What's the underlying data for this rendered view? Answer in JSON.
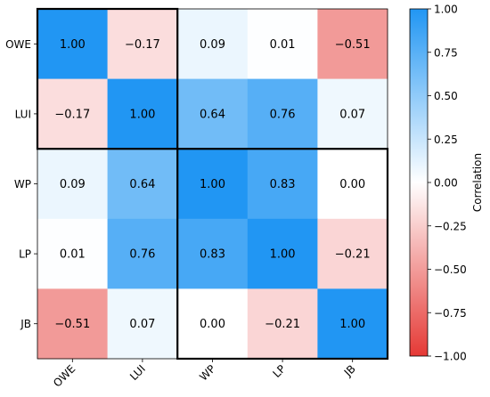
{
  "chart_data": {
    "type": "heatmap",
    "row_labels": [
      "OWE",
      "LUI",
      "WP",
      "LP",
      "JB"
    ],
    "col_labels": [
      "OWE",
      "LUI",
      "WP",
      "LP",
      "JB"
    ],
    "values": [
      [
        1.0,
        -0.17,
        0.09,
        0.01,
        -0.51
      ],
      [
        -0.17,
        1.0,
        0.64,
        0.76,
        0.07
      ],
      [
        0.09,
        0.64,
        1.0,
        0.83,
        0.0
      ],
      [
        0.01,
        0.76,
        0.83,
        1.0,
        -0.21
      ],
      [
        -0.51,
        0.07,
        0.0,
        -0.21,
        1.0
      ]
    ],
    "cell_labels": [
      [
        "1.00",
        "−0.17",
        "0.09",
        "0.01",
        "−0.51"
      ],
      [
        "−0.17",
        "1.00",
        "0.64",
        "0.76",
        "0.07"
      ],
      [
        "0.09",
        "0.64",
        "1.00",
        "0.83",
        "0.00"
      ],
      [
        "0.01",
        "0.76",
        "0.83",
        "1.00",
        "−0.21"
      ],
      [
        "−0.51",
        "0.07",
        "0.00",
        "−0.21",
        "1.00"
      ]
    ],
    "value_range": [
      -1.0,
      1.0
    ],
    "colorbar": {
      "label": "Correlation",
      "ticks": [
        1.0,
        0.75,
        0.5,
        0.25,
        0.0,
        -0.25,
        -0.5,
        -0.75,
        -1.0
      ],
      "tick_labels": [
        "1.00",
        "0.75",
        "0.50",
        "0.25",
        "0.00",
        "−0.25",
        "−0.50",
        "−0.75",
        "−1.00"
      ]
    },
    "colormap": {
      "negative": "#e53935",
      "zero": "#ffffff",
      "positive": "#2196f3"
    },
    "group_boxes": [
      {
        "rows": [
          0,
          1
        ],
        "cols": [
          0,
          1
        ]
      },
      {
        "rows": [
          2,
          4
        ],
        "cols": [
          2,
          4
        ]
      }
    ],
    "grid": false
  }
}
